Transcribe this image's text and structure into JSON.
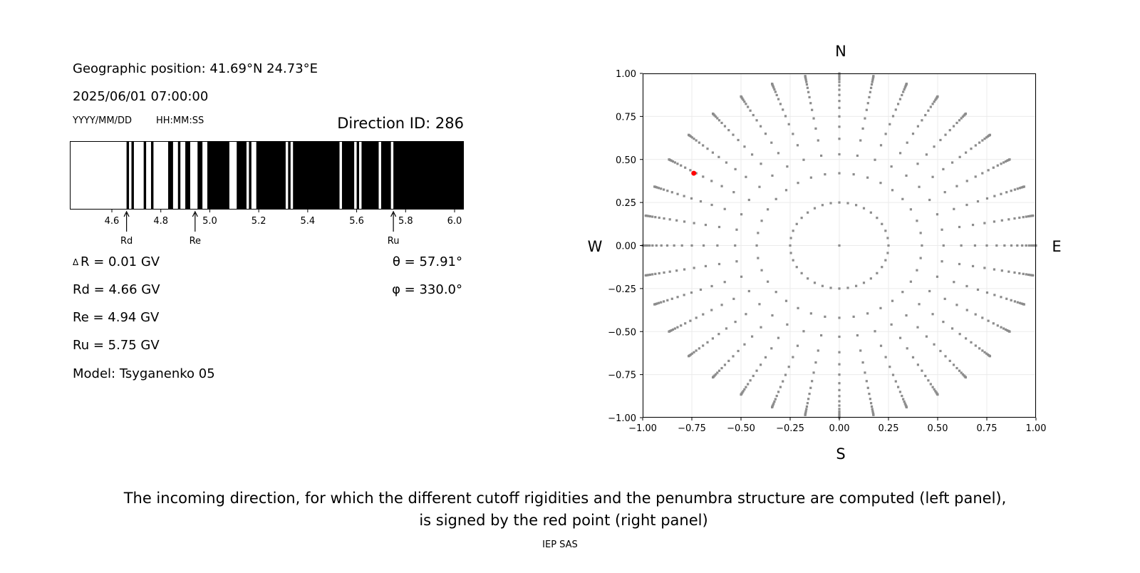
{
  "info": {
    "geo_position": "Geographic position: 41.69°N 24.73°E",
    "datetime": "2025/06/01 07:00:00",
    "date_format": "YYYY/MM/DD",
    "time_format": "HH:MM:SS",
    "direction_id": "Direction ID: 286",
    "delta_r": "R = 0.01 GV",
    "delta_symbol": "Δ",
    "rd": "Rd = 4.66 GV",
    "re": "Re = 4.94 GV",
    "ru": "Ru = 5.75 GV",
    "model": "Model: Tsyganenko 05",
    "theta": "θ = 57.91°",
    "phi": "φ = 330.0°"
  },
  "caption": {
    "line1": "The incoming direction, for which the different cutoff rigidities and the penumbra structure are computed (left panel),",
    "line2": "is signed by the red point (right panel)",
    "credit": "IEP SAS"
  },
  "chart_data": [
    {
      "type": "penumbra-bar",
      "xlabel": "",
      "xlim": [
        4.43,
        6.04
      ],
      "xticks": [
        "4.6",
        "4.8",
        "5.0",
        "5.2",
        "5.4",
        "5.6",
        "5.8",
        "6.0"
      ],
      "colors": {
        "allowed": "#ffffff",
        "forbidden": "#000000"
      },
      "allowed_intervals_gv": [
        [
          4.43,
          4.66
        ],
        [
          4.67,
          4.68
        ],
        [
          4.69,
          4.73
        ],
        [
          4.74,
          4.76
        ],
        [
          4.77,
          4.83
        ],
        [
          4.85,
          4.87
        ],
        [
          4.88,
          4.9
        ],
        [
          4.92,
          4.95
        ],
        [
          4.97,
          4.99
        ],
        [
          5.08,
          5.11
        ],
        [
          5.15,
          5.16
        ],
        [
          5.17,
          5.19
        ],
        [
          5.31,
          5.32
        ],
        [
          5.33,
          5.34
        ],
        [
          5.53,
          5.54
        ],
        [
          5.59,
          5.6
        ],
        [
          5.61,
          5.62
        ],
        [
          5.69,
          5.7
        ],
        [
          5.74,
          5.75
        ]
      ],
      "markers": [
        {
          "label": "Rd",
          "value": 4.66
        },
        {
          "label": "Re",
          "value": 4.94
        },
        {
          "label": "Ru",
          "value": 5.75
        }
      ]
    },
    {
      "type": "scatter",
      "xlim": [
        -1,
        1
      ],
      "ylim": [
        -1,
        1
      ],
      "xticks": [
        "−1.00",
        "−0.75",
        "−0.50",
        "−0.25",
        "0.00",
        "0.25",
        "0.50",
        "0.75",
        "1.00"
      ],
      "yticks": [
        "−1.00",
        "−0.75",
        "−0.50",
        "−0.25",
        "0.00",
        "0.25",
        "0.50",
        "0.75",
        "1.00"
      ],
      "grid": true,
      "compass": {
        "top": "N",
        "bottom": "S",
        "left": "W",
        "right": "E"
      },
      "colors": {
        "directions": "#8c8c8c",
        "selected": "#ff0000"
      },
      "ray_azimuths_deg": [
        0,
        10,
        20,
        30,
        40,
        50,
        60,
        70,
        80,
        90,
        100,
        110,
        120,
        130,
        140,
        150,
        160,
        170,
        180,
        190,
        200,
        210,
        220,
        230,
        240,
        250,
        260,
        270,
        280,
        290,
        300,
        310,
        320,
        330,
        340,
        350
      ],
      "ray_radii": [
        0.42,
        0.53,
        0.62,
        0.69,
        0.75,
        0.8,
        0.84,
        0.875,
        0.905,
        0.93,
        0.95,
        0.965,
        0.977,
        0.986,
        0.993,
        0.998,
        1.0
      ],
      "inner_ring_radius": 0.25,
      "center_point": [
        0,
        0
      ],
      "selected_point": [
        -0.74,
        0.42
      ]
    }
  ]
}
